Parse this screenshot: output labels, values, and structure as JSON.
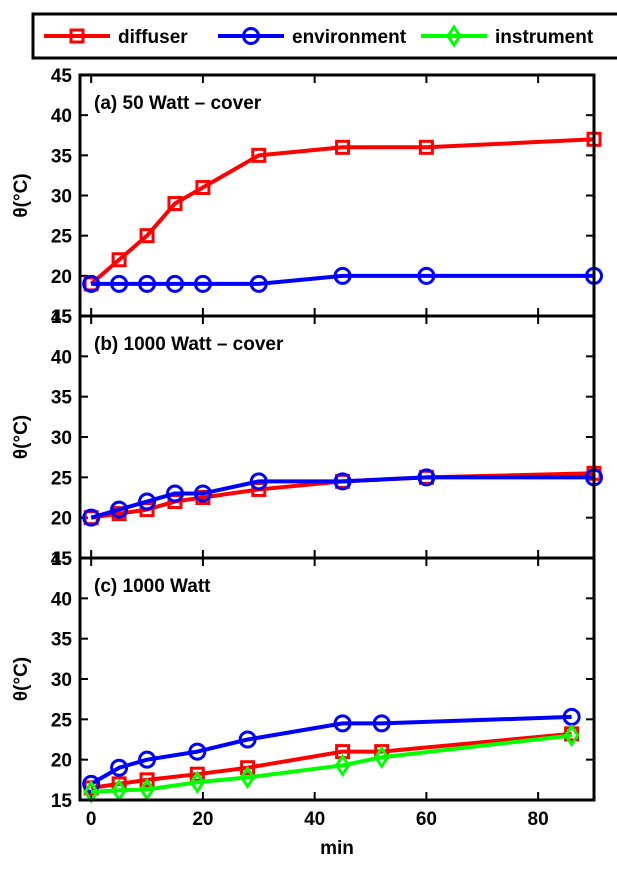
{
  "legend": {
    "entries": [
      {
        "label": "diffuser",
        "color": "#ff0000",
        "marker": "square"
      },
      {
        "label": "environment",
        "color": "#0000ff",
        "marker": "circle"
      },
      {
        "label": "instrument",
        "color": "#00ff00",
        "marker": "diamond"
      }
    ]
  },
  "chart_data": [
    {
      "type": "line",
      "title": "(a) 50 Watt – cover",
      "ylabel": "θ(°C)",
      "xlabel": "",
      "xlim": [
        -2,
        90
      ],
      "ylim": [
        15,
        45
      ],
      "yticks": [
        15,
        20,
        25,
        30,
        35,
        40,
        45
      ],
      "xticks": [
        0,
        20,
        40,
        60,
        80
      ],
      "series": [
        {
          "name": "diffuser",
          "x": [
            0,
            5,
            10,
            15,
            20,
            30,
            45,
            60,
            90
          ],
          "y": [
            19,
            22,
            25,
            29,
            31,
            35,
            36,
            36,
            37
          ]
        },
        {
          "name": "environment",
          "x": [
            0,
            5,
            10,
            15,
            20,
            30,
            45,
            60,
            90
          ],
          "y": [
            19,
            19,
            19,
            19,
            19,
            19,
            20,
            20,
            20
          ]
        }
      ]
    },
    {
      "type": "line",
      "title": "(b) 1000 Watt – cover",
      "ylabel": "θ(°C)",
      "xlabel": "",
      "xlim": [
        -2,
        90
      ],
      "ylim": [
        15,
        45
      ],
      "yticks": [
        15,
        20,
        25,
        30,
        35,
        40,
        45
      ],
      "xticks": [
        0,
        20,
        40,
        60,
        80
      ],
      "series": [
        {
          "name": "diffuser",
          "x": [
            0,
            5,
            10,
            15,
            20,
            30,
            45,
            60,
            90
          ],
          "y": [
            20,
            20.5,
            21,
            22,
            22.5,
            23.5,
            24.5,
            25,
            25.5
          ]
        },
        {
          "name": "environment",
          "x": [
            0,
            5,
            10,
            15,
            20,
            30,
            45,
            60,
            90
          ],
          "y": [
            20,
            21,
            22,
            23,
            23,
            24.5,
            24.5,
            25,
            25
          ]
        }
      ]
    },
    {
      "type": "line",
      "title": "(c) 1000 Watt",
      "ylabel": "θ(°C)",
      "xlabel": "min",
      "xlim": [
        -2,
        90
      ],
      "ylim": [
        15,
        45
      ],
      "yticks": [
        15,
        20,
        25,
        30,
        35,
        40,
        45
      ],
      "xticks": [
        0,
        20,
        40,
        60,
        80
      ],
      "series": [
        {
          "name": "diffuser",
          "x": [
            0,
            5,
            10,
            19,
            28,
            45,
            52,
            86
          ],
          "y": [
            16.5,
            17,
            17.5,
            18.2,
            19,
            21,
            21,
            23.2
          ]
        },
        {
          "name": "environment",
          "x": [
            0,
            5,
            10,
            19,
            28,
            45,
            52,
            86
          ],
          "y": [
            17,
            19,
            20,
            21,
            22.5,
            24.5,
            24.5,
            25.3
          ]
        },
        {
          "name": "instrument",
          "x": [
            0,
            5,
            10,
            19,
            28,
            45,
            52,
            86
          ],
          "y": [
            16,
            16.2,
            16.3,
            17.2,
            17.8,
            19.3,
            20.3,
            23
          ]
        }
      ]
    }
  ]
}
